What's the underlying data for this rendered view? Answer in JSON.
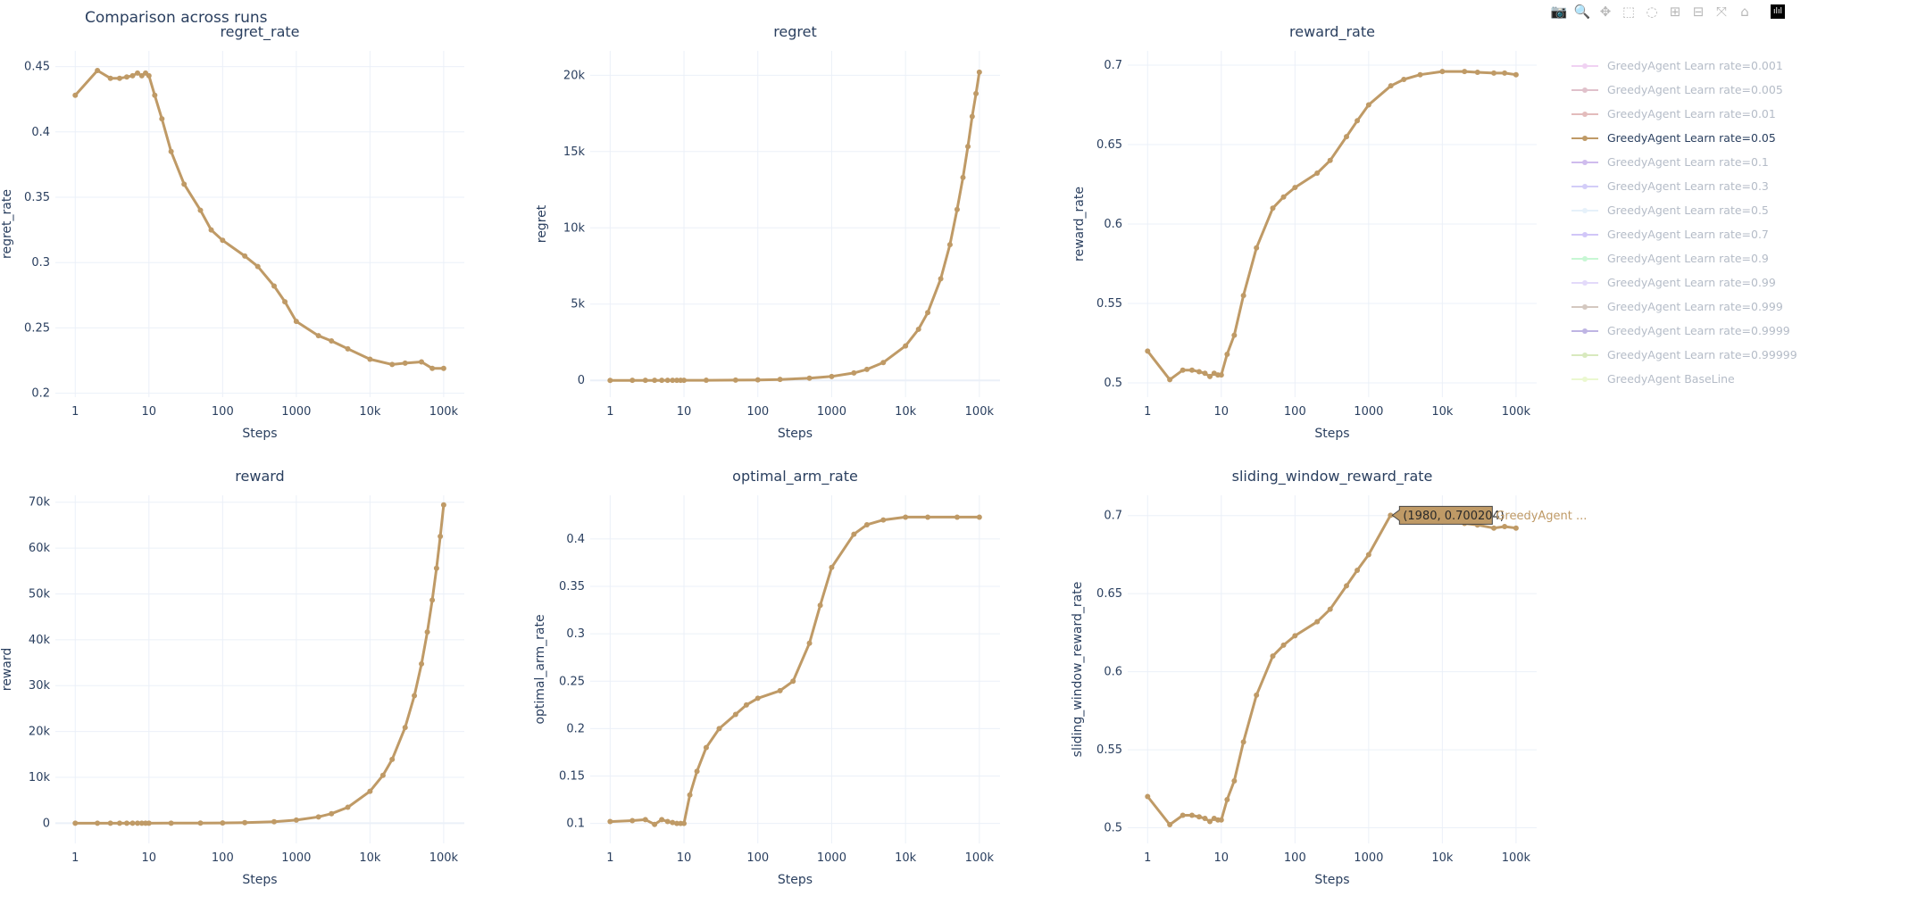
{
  "title": "Comparison across runs",
  "modebar": [
    {
      "name": "camera-icon",
      "glyph": "📷"
    },
    {
      "name": "zoom-icon",
      "glyph": "🔍",
      "active": true
    },
    {
      "name": "pan-icon",
      "glyph": "✥"
    },
    {
      "name": "box-select-icon",
      "glyph": "⬚"
    },
    {
      "name": "lasso-select-icon",
      "glyph": "◌"
    },
    {
      "name": "zoom-in-icon",
      "glyph": "⊞"
    },
    {
      "name": "zoom-out-icon",
      "glyph": "⊟"
    },
    {
      "name": "autoscale-icon",
      "glyph": "⤧"
    },
    {
      "name": "reset-axes-icon",
      "glyph": "⌂"
    },
    {
      "name": "plotly-logo-icon",
      "glyph": "ılıl",
      "logo": true
    }
  ],
  "legend": [
    {
      "label": "GreedyAgent Learn rate=0.001",
      "color": "#e2a6e6",
      "visible": false
    },
    {
      "label": "GreedyAgent Learn rate=0.005",
      "color": "#c28498",
      "visible": false
    },
    {
      "label": "GreedyAgent Learn rate=0.01",
      "color": "#c97b7b",
      "visible": false
    },
    {
      "label": "GreedyAgent Learn rate=0.05",
      "color": "#bf9a66",
      "visible": true
    },
    {
      "label": "GreedyAgent Learn rate=0.1",
      "color": "#a07cdc",
      "visible": false
    },
    {
      "label": "GreedyAgent Learn rate=0.3",
      "color": "#a99cf2",
      "visible": false
    },
    {
      "label": "GreedyAgent Learn rate=0.5",
      "color": "#cfe5f7",
      "visible": false
    },
    {
      "label": "GreedyAgent Learn rate=0.7",
      "color": "#a58ef2",
      "visible": false
    },
    {
      "label": "GreedyAgent Learn rate=0.9",
      "color": "#90f0aa",
      "visible": false
    },
    {
      "label": "GreedyAgent Learn rate=0.99",
      "color": "#c9b6f7",
      "visible": false
    },
    {
      "label": "GreedyAgent Learn rate=0.999",
      "color": "#ab9383",
      "visible": false
    },
    {
      "label": "GreedyAgent Learn rate=0.9999",
      "color": "#7f6bc9",
      "visible": false
    },
    {
      "label": "GreedyAgent Learn rate=0.99999",
      "color": "#b3d47f",
      "visible": false
    },
    {
      "label": "GreedyAgent BaseLine",
      "color": "#d9f2a3",
      "visible": false
    }
  ],
  "tooltip": {
    "text": "(1980, 0.700204)",
    "trace": "GreedyAgent ...",
    "chart": 5,
    "x": 1980,
    "y": 0.700204
  },
  "chart_data": [
    {
      "type": "line",
      "title": "regret_rate",
      "xlabel": "Steps",
      "ylabel": "regret_rate",
      "xscale": "log",
      "xlim": [
        1,
        100000
      ],
      "ylim": [
        0.197,
        0.462
      ],
      "xticks": [
        [
          1,
          "1"
        ],
        [
          10,
          "10"
        ],
        [
          100,
          "100"
        ],
        [
          1000,
          "1000"
        ],
        [
          10000,
          "10k"
        ],
        [
          100000,
          "100k"
        ]
      ],
      "yticks": [
        [
          0.2,
          "0.2"
        ],
        [
          0.25,
          "0.25"
        ],
        [
          0.3,
          "0.3"
        ],
        [
          0.35,
          "0.35"
        ],
        [
          0.4,
          "0.4"
        ],
        [
          0.45,
          "0.45"
        ]
      ],
      "series": [
        {
          "name": "GreedyAgent Learn rate=0.05",
          "x": [
            1,
            2,
            3,
            4,
            5,
            6,
            7,
            8,
            9,
            10,
            12,
            15,
            20,
            30,
            50,
            70,
            100,
            200,
            300,
            500,
            700,
            1000,
            2000,
            3000,
            5000,
            10000,
            20000,
            30000,
            50000,
            70000,
            100000
          ],
          "y": [
            0.428,
            0.447,
            0.441,
            0.441,
            0.442,
            0.443,
            0.445,
            0.443,
            0.445,
            0.443,
            0.428,
            0.41,
            0.385,
            0.36,
            0.34,
            0.325,
            0.317,
            0.305,
            0.297,
            0.282,
            0.27,
            0.255,
            0.244,
            0.24,
            0.234,
            0.226,
            0.222,
            0.223,
            0.224,
            0.219,
            0.219
          ]
        }
      ]
    },
    {
      "type": "line",
      "title": "regret",
      "xlabel": "Steps",
      "ylabel": "regret",
      "xscale": "log",
      "xlim": [
        1,
        100000
      ],
      "ylim": [
        -1100,
        21600
      ],
      "xticks": [
        [
          1,
          "1"
        ],
        [
          10,
          "10"
        ],
        [
          100,
          "100"
        ],
        [
          1000,
          "1000"
        ],
        [
          10000,
          "10k"
        ],
        [
          100000,
          "100k"
        ]
      ],
      "yticks": [
        [
          0,
          "0"
        ],
        [
          5000,
          "5k"
        ],
        [
          10000,
          "10k"
        ],
        [
          15000,
          "15k"
        ],
        [
          20000,
          "20k"
        ]
      ],
      "series": [
        {
          "name": "GreedyAgent Learn rate=0.05",
          "x": [
            1,
            2,
            3,
            4,
            5,
            6,
            7,
            8,
            9,
            10,
            20,
            50,
            100,
            200,
            500,
            1000,
            2000,
            3000,
            5000,
            10000,
            15000,
            20000,
            30000,
            40000,
            50000,
            60000,
            70000,
            80000,
            90000,
            100000
          ],
          "y": [
            0,
            1,
            1,
            2,
            2,
            3,
            3,
            4,
            4,
            4,
            8,
            17,
            32,
            61,
            141,
            255,
            488,
            720,
            1170,
            2260,
            3350,
            4440,
            6660,
            8900,
            11200,
            13300,
            15330,
            17300,
            18800,
            20200
          ]
        }
      ]
    },
    {
      "type": "line",
      "title": "reward_rate",
      "xlabel": "Steps",
      "ylabel": "reward_rate",
      "xscale": "log",
      "xlim": [
        1,
        100000
      ],
      "ylim": [
        0.491,
        0.709
      ],
      "xticks": [
        [
          1,
          "1"
        ],
        [
          10,
          "10"
        ],
        [
          100,
          "100"
        ],
        [
          1000,
          "1000"
        ],
        [
          10000,
          "10k"
        ],
        [
          100000,
          "100k"
        ]
      ],
      "yticks": [
        [
          0.5,
          "0.5"
        ],
        [
          0.55,
          "0.55"
        ],
        [
          0.6,
          "0.6"
        ],
        [
          0.65,
          "0.65"
        ],
        [
          0.7,
          "0.7"
        ]
      ],
      "series": [
        {
          "name": "GreedyAgent Learn rate=0.05",
          "x": [
            1,
            2,
            3,
            4,
            5,
            6,
            7,
            8,
            9,
            10,
            12,
            15,
            20,
            30,
            50,
            70,
            100,
            200,
            300,
            500,
            700,
            1000,
            2000,
            3000,
            5000,
            10000,
            20000,
            30000,
            50000,
            70000,
            100000
          ],
          "y": [
            0.52,
            0.502,
            0.508,
            0.508,
            0.507,
            0.506,
            0.504,
            0.506,
            0.505,
            0.505,
            0.518,
            0.53,
            0.555,
            0.585,
            0.61,
            0.617,
            0.623,
            0.632,
            0.64,
            0.655,
            0.665,
            0.675,
            0.687,
            0.691,
            0.694,
            0.696,
            0.696,
            0.6955,
            0.695,
            0.695,
            0.694
          ]
        }
      ]
    },
    {
      "type": "line",
      "title": "reward",
      "xlabel": "Steps",
      "ylabel": "reward",
      "xscale": "log",
      "xlim": [
        1,
        100000
      ],
      "ylim": [
        -4400,
        71500
      ],
      "xticks": [
        [
          1,
          "1"
        ],
        [
          10,
          "10"
        ],
        [
          100,
          "100"
        ],
        [
          1000,
          "1000"
        ],
        [
          10000,
          "10k"
        ],
        [
          100000,
          "100k"
        ]
      ],
      "yticks": [
        [
          0,
          "0"
        ],
        [
          10000,
          "10k"
        ],
        [
          20000,
          "20k"
        ],
        [
          30000,
          "30k"
        ],
        [
          40000,
          "40k"
        ],
        [
          50000,
          "50k"
        ],
        [
          60000,
          "60k"
        ],
        [
          70000,
          "70k"
        ]
      ],
      "series": [
        {
          "name": "GreedyAgent Learn rate=0.05",
          "x": [
            1,
            2,
            3,
            4,
            5,
            6,
            7,
            8,
            9,
            10,
            20,
            50,
            100,
            200,
            500,
            1000,
            2000,
            3000,
            5000,
            10000,
            15000,
            20000,
            30000,
            40000,
            50000,
            60000,
            70000,
            80000,
            90000,
            100000
          ],
          "y": [
            0.5,
            1,
            1.5,
            2,
            2.5,
            3,
            3.5,
            4,
            4.5,
            5,
            11,
            30,
            62,
            126,
            328,
            675,
            1374,
            2073,
            3470,
            6960,
            10440,
            13920,
            20870,
            27810,
            34750,
            41700,
            48650,
            55600,
            62550,
            69400
          ]
        }
      ]
    },
    {
      "type": "line",
      "title": "optimal_arm_rate",
      "xlabel": "Steps",
      "ylabel": "optimal_arm_rate",
      "xscale": "log",
      "xlim": [
        1,
        100000
      ],
      "ylim": [
        0.079,
        0.446
      ],
      "xticks": [
        [
          1,
          "1"
        ],
        [
          10,
          "10"
        ],
        [
          100,
          "100"
        ],
        [
          1000,
          "1000"
        ],
        [
          10000,
          "10k"
        ],
        [
          100000,
          "100k"
        ]
      ],
      "yticks": [
        [
          0.1,
          "0.1"
        ],
        [
          0.15,
          "0.15"
        ],
        [
          0.2,
          "0.2"
        ],
        [
          0.25,
          "0.25"
        ],
        [
          0.3,
          "0.3"
        ],
        [
          0.35,
          "0.35"
        ],
        [
          0.4,
          "0.4"
        ]
      ],
      "series": [
        {
          "name": "GreedyAgent Learn rate=0.05",
          "x": [
            1,
            2,
            3,
            4,
            5,
            6,
            7,
            8,
            9,
            10,
            12,
            15,
            20,
            30,
            50,
            70,
            100,
            200,
            300,
            500,
            700,
            1000,
            2000,
            3000,
            5000,
            10000,
            20000,
            50000,
            100000
          ],
          "y": [
            0.102,
            0.103,
            0.104,
            0.099,
            0.104,
            0.102,
            0.101,
            0.1,
            0.1,
            0.1,
            0.13,
            0.155,
            0.18,
            0.2,
            0.215,
            0.225,
            0.232,
            0.24,
            0.25,
            0.29,
            0.33,
            0.37,
            0.405,
            0.415,
            0.42,
            0.423,
            0.423,
            0.423,
            0.423
          ]
        }
      ]
    },
    {
      "type": "line",
      "title": "sliding_window_reward_rate",
      "xlabel": "Steps",
      "ylabel": "sliding_window_reward_rate",
      "xscale": "log",
      "xlim": [
        1,
        100000
      ],
      "ylim": [
        0.49,
        0.713
      ],
      "xticks": [
        [
          1,
          "1"
        ],
        [
          10,
          "10"
        ],
        [
          100,
          "100"
        ],
        [
          1000,
          "1000"
        ],
        [
          10000,
          "10k"
        ],
        [
          100000,
          "100k"
        ]
      ],
      "yticks": [
        [
          0.5,
          "0.5"
        ],
        [
          0.55,
          "0.55"
        ],
        [
          0.6,
          "0.6"
        ],
        [
          0.65,
          "0.65"
        ],
        [
          0.7,
          "0.7"
        ]
      ],
      "series": [
        {
          "name": "GreedyAgent Learn rate=0.05",
          "x": [
            1,
            2,
            3,
            4,
            5,
            6,
            7,
            8,
            9,
            10,
            12,
            15,
            20,
            30,
            50,
            70,
            100,
            200,
            300,
            500,
            700,
            1000,
            1980,
            3000,
            5000,
            10000,
            20000,
            30000,
            50000,
            70000,
            100000
          ],
          "y": [
            0.52,
            0.502,
            0.508,
            0.508,
            0.507,
            0.506,
            0.504,
            0.506,
            0.505,
            0.505,
            0.518,
            0.53,
            0.555,
            0.585,
            0.61,
            0.617,
            0.623,
            0.632,
            0.64,
            0.655,
            0.665,
            0.675,
            0.700204,
            0.699,
            0.697,
            0.696,
            0.695,
            0.694,
            0.692,
            0.693,
            0.692
          ]
        }
      ]
    }
  ]
}
